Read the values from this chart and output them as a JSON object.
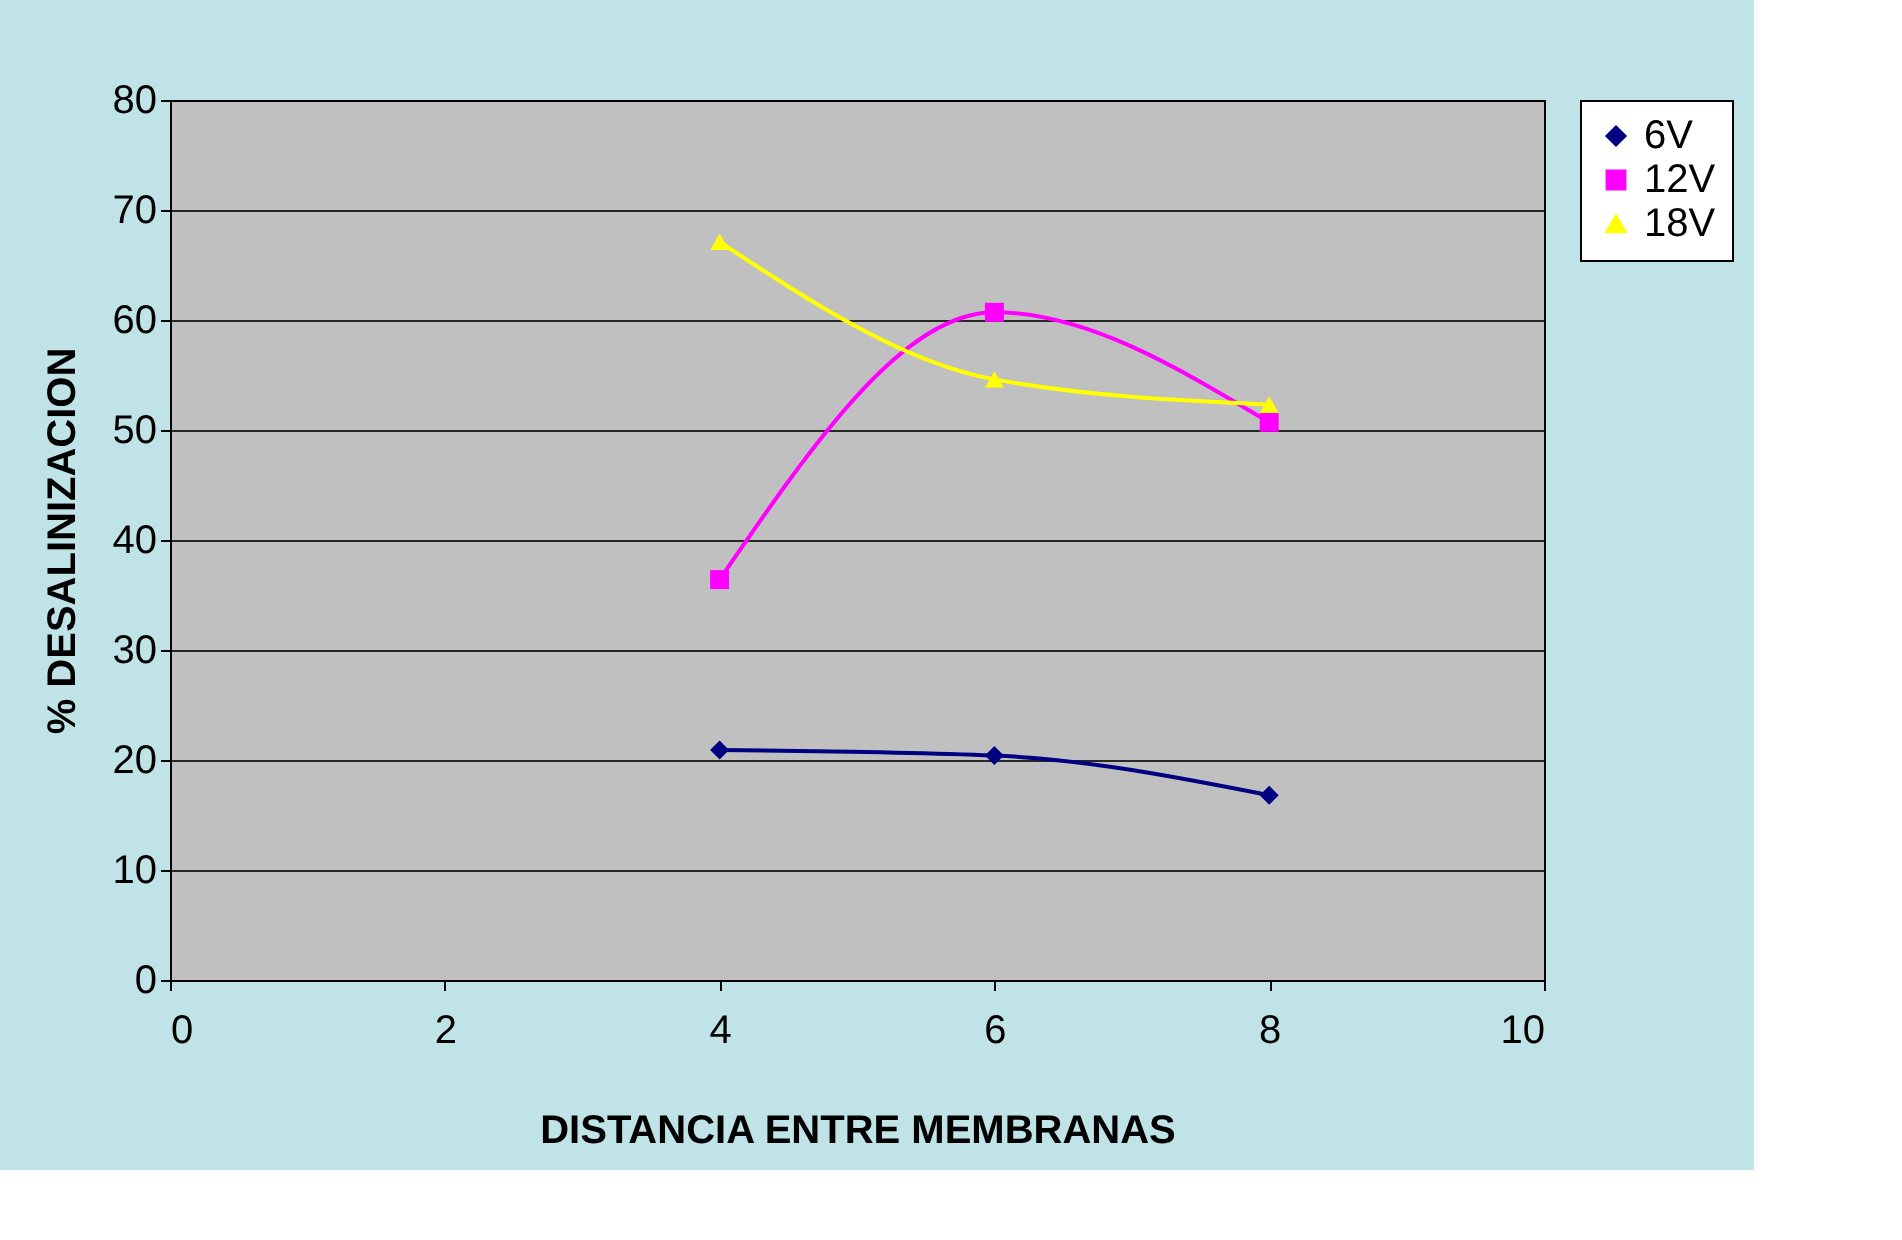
{
  "chart_data": {
    "type": "line",
    "xlabel": "DISTANCIA ENTRE MEMBRANAS",
    "ylabel": "% DESALINIZACION",
    "x": [
      4,
      6,
      8
    ],
    "series": [
      {
        "name": "6V",
        "color": "#000080",
        "marker": "diamond",
        "values": [
          20.9,
          20.4,
          16.8
        ]
      },
      {
        "name": "12V",
        "color": "#ff00ff",
        "marker": "square",
        "values": [
          36.4,
          60.7,
          50.7
        ]
      },
      {
        "name": "18V",
        "color": "#ffff00",
        "marker": "triangle",
        "values": [
          67.1,
          54.6,
          52.3
        ]
      }
    ],
    "xlim": [
      0,
      10
    ],
    "xticks": [
      0,
      2,
      4,
      6,
      8,
      10
    ],
    "ylim": [
      0,
      80
    ],
    "yticks": [
      0,
      10,
      20,
      30,
      40,
      50,
      60,
      70,
      80
    ],
    "grid": "y",
    "legend": "right",
    "line_style": "solid"
  }
}
